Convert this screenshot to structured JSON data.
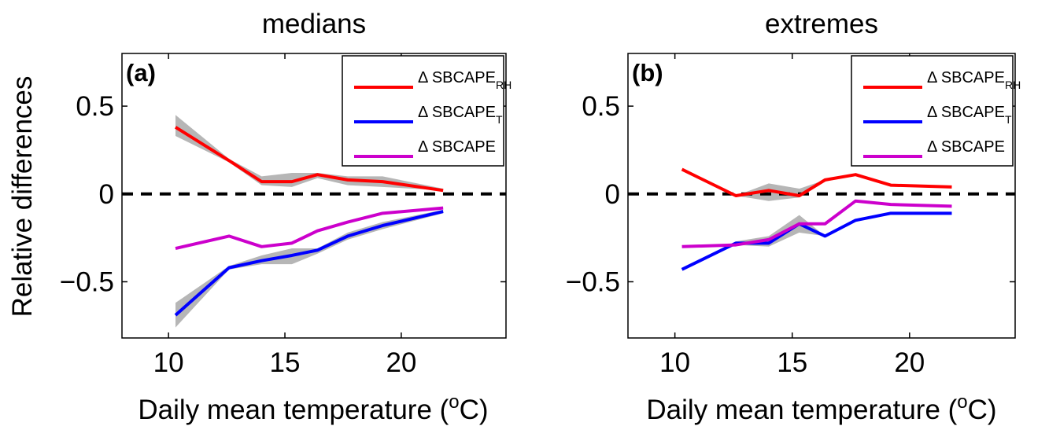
{
  "figure": {
    "ylabel": "Relative differences",
    "xlabel_prefix": "Daily mean temperature (",
    "xlabel_sup": "o",
    "xlabel_suffix": "C)"
  },
  "chart_data": [
    {
      "type": "line",
      "title": "medians",
      "panel_label": "(a)",
      "xlabel": "Daily mean temperature (oC)",
      "ylabel": "Relative differences",
      "xlim": [
        8,
        24.5
      ],
      "ylim": [
        -0.82,
        0.8
      ],
      "xticks": [
        10,
        15,
        20
      ],
      "yticks": [
        -0.5,
        0,
        0.5
      ],
      "ytick_labels": [
        "−0.5",
        "0",
        "0.5"
      ],
      "grid": false,
      "legend_position": "top-right",
      "zero_line": {
        "y": 0,
        "style": "dashed",
        "color": "#000000"
      },
      "x": [
        10.3,
        12.6,
        14.0,
        15.3,
        16.4,
        17.7,
        19.2,
        21.8
      ],
      "series": [
        {
          "name": "Δ SBCAPE_RH",
          "legend_main": "Δ SBCAPE",
          "legend_sub": "RH",
          "color": "#ff0000",
          "values": [
            0.38,
            0.19,
            0.07,
            0.07,
            0.11,
            0.08,
            0.07,
            0.02
          ],
          "band_lower": [
            0.33,
            0.18,
            0.05,
            0.04,
            0.09,
            0.05,
            0.04,
            0.02
          ],
          "band_upper": [
            0.45,
            0.2,
            0.1,
            0.12,
            0.12,
            0.1,
            0.1,
            0.03
          ]
        },
        {
          "name": "Δ SBCAPE_T",
          "legend_main": "Δ SBCAPE",
          "legend_sub": "T",
          "color": "#0000ff",
          "values": [
            -0.69,
            -0.42,
            -0.38,
            -0.35,
            -0.32,
            -0.24,
            -0.18,
            -0.1
          ],
          "band_lower": [
            -0.76,
            -0.43,
            -0.4,
            -0.4,
            -0.34,
            -0.26,
            -0.2,
            -0.11
          ],
          "band_upper": [
            -0.62,
            -0.41,
            -0.35,
            -0.31,
            -0.31,
            -0.22,
            -0.16,
            -0.09
          ]
        },
        {
          "name": "Δ SBCAPE",
          "legend_main": "Δ SBCAPE",
          "legend_sub": "",
          "color": "#cc00cc",
          "values": [
            -0.31,
            -0.24,
            -0.3,
            -0.28,
            -0.21,
            -0.16,
            -0.11,
            -0.08
          ]
        }
      ]
    },
    {
      "type": "line",
      "title": "extremes",
      "panel_label": "(b)",
      "xlabel": "Daily mean temperature (oC)",
      "ylabel": "",
      "xlim": [
        8,
        24.5
      ],
      "ylim": [
        -0.82,
        0.8
      ],
      "xticks": [
        10,
        15,
        20
      ],
      "yticks": [
        -0.5,
        0,
        0.5
      ],
      "ytick_labels": [
        "−0.5",
        "0",
        "0.5"
      ],
      "grid": false,
      "legend_position": "top-right",
      "zero_line": {
        "y": 0,
        "style": "dashed",
        "color": "#000000"
      },
      "x": [
        10.3,
        12.6,
        14.0,
        15.3,
        16.4,
        17.7,
        19.2,
        21.8
      ],
      "series": [
        {
          "name": "Δ SBCAPE_RH",
          "legend_main": "Δ SBCAPE",
          "legend_sub": "RH",
          "color": "#ff0000",
          "values": [
            0.14,
            -0.01,
            0.02,
            -0.01,
            0.08,
            0.11,
            0.05,
            0.04
          ],
          "band_lower": [
            0.14,
            -0.01,
            -0.04,
            -0.02,
            0.07,
            0.11,
            0.05,
            0.04
          ],
          "band_upper": [
            0.14,
            -0.01,
            0.06,
            0.03,
            0.08,
            0.11,
            0.05,
            0.04
          ]
        },
        {
          "name": "Δ SBCAPE_T",
          "legend_main": "Δ SBCAPE",
          "legend_sub": "T",
          "color": "#0000ff",
          "values": [
            -0.43,
            -0.28,
            -0.28,
            -0.17,
            -0.24,
            -0.15,
            -0.11,
            -0.11
          ],
          "band_lower": [
            -0.43,
            -0.29,
            -0.3,
            -0.22,
            -0.24,
            -0.15,
            -0.11,
            -0.11
          ],
          "band_upper": [
            -0.43,
            -0.27,
            -0.24,
            -0.12,
            -0.24,
            -0.15,
            -0.11,
            -0.11
          ]
        },
        {
          "name": "Δ SBCAPE",
          "legend_main": "Δ SBCAPE",
          "legend_sub": "",
          "color": "#cc00cc",
          "values": [
            -0.3,
            -0.29,
            -0.26,
            -0.17,
            -0.17,
            -0.04,
            -0.06,
            -0.07
          ]
        }
      ]
    }
  ]
}
